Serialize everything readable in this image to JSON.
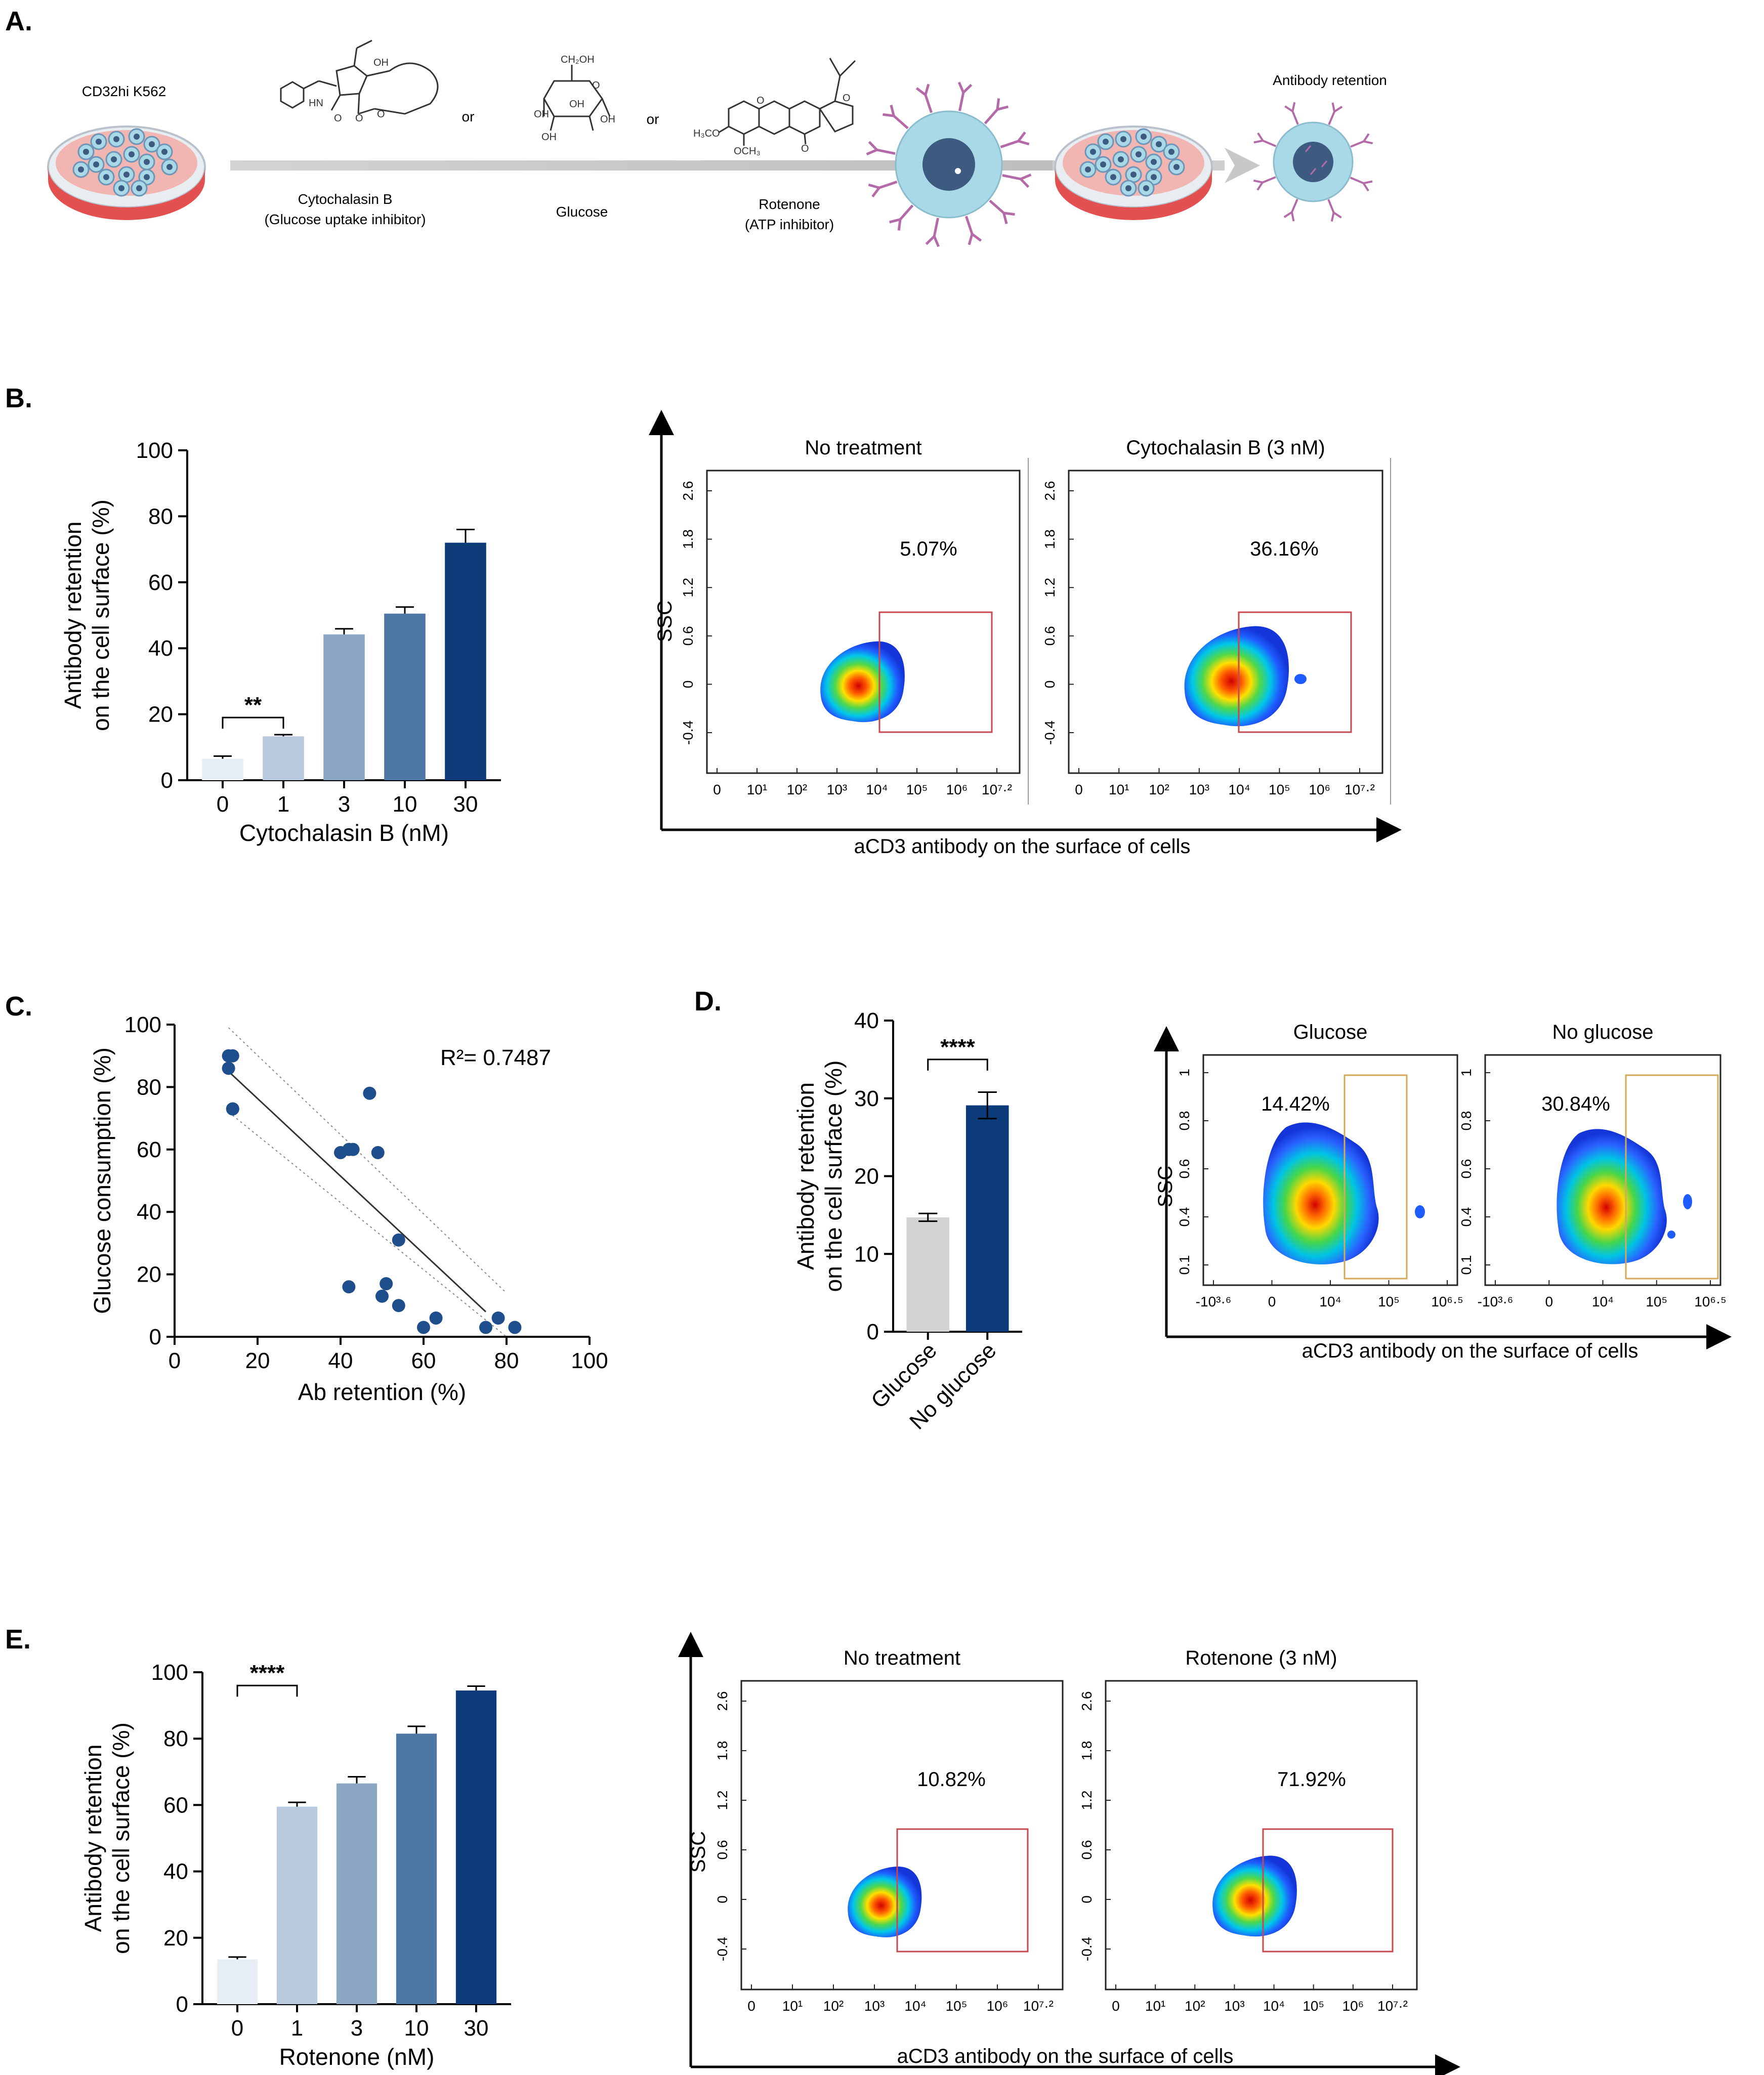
{
  "colors": {
    "bar_shades": [
      "#e8eef6",
      "#b8c9de",
      "#8ba7c5",
      "#4e77a6",
      "#0d3a78"
    ],
    "bar_grey": "#d3d3d3",
    "bar_dark": "#0d3a78",
    "gate_red": "#c8484f",
    "gate_gold": "#d4aa5a",
    "scatter_dot": "#1f4e8c",
    "cell_fill": "#a9d9e6",
    "dish_red": "#e04848",
    "antibody": "#b46aa8"
  },
  "panelA": {
    "letter": "A.",
    "cell_line": "CD32hi K562",
    "or_labels": [
      "or",
      "or"
    ],
    "compounds": [
      {
        "name": "Cytochalasin B",
        "note": "(Glucose uptake inhibitor)",
        "icon": "cytochalasin-structure-icon"
      },
      {
        "name": "Glucose",
        "note": "",
        "icon": "glucose-structure-icon"
      },
      {
        "name": "Rotenone",
        "note": "(ATP inhibitor)",
        "icon": "rotenone-structure-icon"
      }
    ],
    "result_label": "Antibody retention",
    "chem_text": {
      "cytochalasin": [
        "OH",
        "HN",
        "O",
        "O",
        "O"
      ],
      "glucose": [
        "CH₂OH",
        "O",
        "OH",
        "OH",
        "OH",
        "OH"
      ],
      "rotenone": [
        "O",
        "O",
        "H₃CO",
        "OCH₃",
        "O"
      ]
    }
  },
  "chart_data": [
    {
      "id": "B-bar",
      "type": "bar",
      "panel": "B.",
      "categories": [
        "0",
        "1",
        "3",
        "10",
        "30"
      ],
      "values": [
        6.5,
        13.3,
        44.2,
        50.5,
        72.0
      ],
      "errors": [
        0.8,
        0.5,
        1.7,
        2.0,
        4.0
      ],
      "xlabel": "Cytochalasin B (nM)",
      "ylabel": [
        "Antibody retention",
        "on the cell surface (%)"
      ],
      "ylim": [
        0,
        100
      ],
      "yticks": [
        "0",
        "20",
        "40",
        "60",
        "80",
        "100"
      ],
      "significance": [
        {
          "from": 0,
          "to": 1,
          "label": "**"
        }
      ]
    },
    {
      "id": "B-flow",
      "type": "heatmap",
      "panel": "B.",
      "xlabel": "aCD3 antibody on the surface of cells",
      "ylabel": "SSC",
      "yticks": [
        "-0.4",
        "0",
        "0.6",
        "1.2",
        "1.8",
        "2.6"
      ],
      "xticks": [
        "0",
        "10¹",
        "10²",
        "10³",
        "10⁴",
        "10⁵",
        "10⁶",
        "10⁷·²"
      ],
      "plots": [
        {
          "title": "No treatment",
          "gate_percent": "5.07%"
        },
        {
          "title": "Cytochalasin B (3 nM)",
          "gate_percent": "36.16%"
        }
      ]
    },
    {
      "id": "C-scatter",
      "type": "scatter",
      "panel": "C.",
      "x": [
        13,
        14,
        13,
        14,
        14,
        47,
        40,
        42,
        43,
        49,
        54,
        42,
        51,
        50,
        54,
        60,
        63,
        75,
        78,
        82
      ],
      "y": [
        90,
        90,
        86,
        73,
        73,
        78,
        59,
        60,
        60,
        59,
        31,
        16,
        17,
        13,
        10,
        3,
        6,
        3,
        6,
        3
      ],
      "fit": {
        "x": [
          13,
          75
        ],
        "y": [
          85,
          8
        ]
      },
      "ci_upper": {
        "x": [
          13,
          80
        ],
        "y": [
          99,
          14
        ]
      },
      "ci_lower": {
        "x": [
          13,
          80
        ],
        "y": [
          72,
          -2
        ]
      },
      "annotation": "R²= 0.7487",
      "xlabel": "Ab retention (%)",
      "ylabel": "Glucose consumption (%)",
      "xlim": [
        0,
        100
      ],
      "ylim": [
        0,
        100
      ],
      "xticks": [
        "0",
        "20",
        "40",
        "60",
        "80",
        "100"
      ],
      "yticks": [
        "0",
        "20",
        "40",
        "60",
        "80",
        "100"
      ]
    },
    {
      "id": "D-bar",
      "type": "bar",
      "panel": "D.",
      "categories": [
        "Glucose",
        "No glucose"
      ],
      "values": [
        14.7,
        29.1
      ],
      "errors": [
        0.5,
        1.7
      ],
      "ylabel": [
        "Antibody retention",
        "on the cell surface (%)"
      ],
      "ylim": [
        0,
        40
      ],
      "yticks": [
        "0",
        "10",
        "20",
        "30",
        "40"
      ],
      "significance": [
        {
          "from": 0,
          "to": 1,
          "label": "****"
        }
      ]
    },
    {
      "id": "D-flow",
      "type": "heatmap",
      "panel": "D.",
      "xlabel": "aCD3 antibody on the surface of cells",
      "ylabel": "SSC",
      "yticks": [
        "0.1",
        "0.4",
        "0.6",
        "0.8",
        "1"
      ],
      "xticks": [
        "-10³·⁶",
        "0",
        "10⁴",
        "10⁵",
        "10⁶·⁵"
      ],
      "plots": [
        {
          "title": "Glucose",
          "gate_percent": "14.42%"
        },
        {
          "title": "No glucose",
          "gate_percent": "30.84%"
        }
      ]
    },
    {
      "id": "E-bar",
      "type": "bar",
      "panel": "E.",
      "categories": [
        "0",
        "1",
        "3",
        "10",
        "30"
      ],
      "values": [
        13.5,
        59.5,
        66.5,
        81.5,
        94.5
      ],
      "errors": [
        0.7,
        1.3,
        2.0,
        2.2,
        1.3
      ],
      "xlabel": "Rotenone (nM)",
      "ylabel": [
        "Antibody retention",
        "on the cell surface (%)"
      ],
      "ylim": [
        0,
        100
      ],
      "yticks": [
        "0",
        "20",
        "40",
        "60",
        "80",
        "100"
      ],
      "significance": [
        {
          "from": 0,
          "to": 1,
          "label": "****"
        }
      ]
    },
    {
      "id": "E-flow",
      "type": "heatmap",
      "panel": "E.",
      "xlabel": "aCD3 antibody on the surface of cells",
      "ylabel": "SSC",
      "yticks": [
        "-0.4",
        "0",
        "0.6",
        "1.2",
        "1.8",
        "2.6"
      ],
      "xticks": [
        "0",
        "10¹",
        "10²",
        "10³",
        "10⁴",
        "10⁵",
        "10⁶",
        "10⁷·²"
      ],
      "plots": [
        {
          "title": "No treatment",
          "gate_percent": "10.82%"
        },
        {
          "title": "Rotenone (3 nM)",
          "gate_percent": "71.92%"
        }
      ]
    }
  ]
}
